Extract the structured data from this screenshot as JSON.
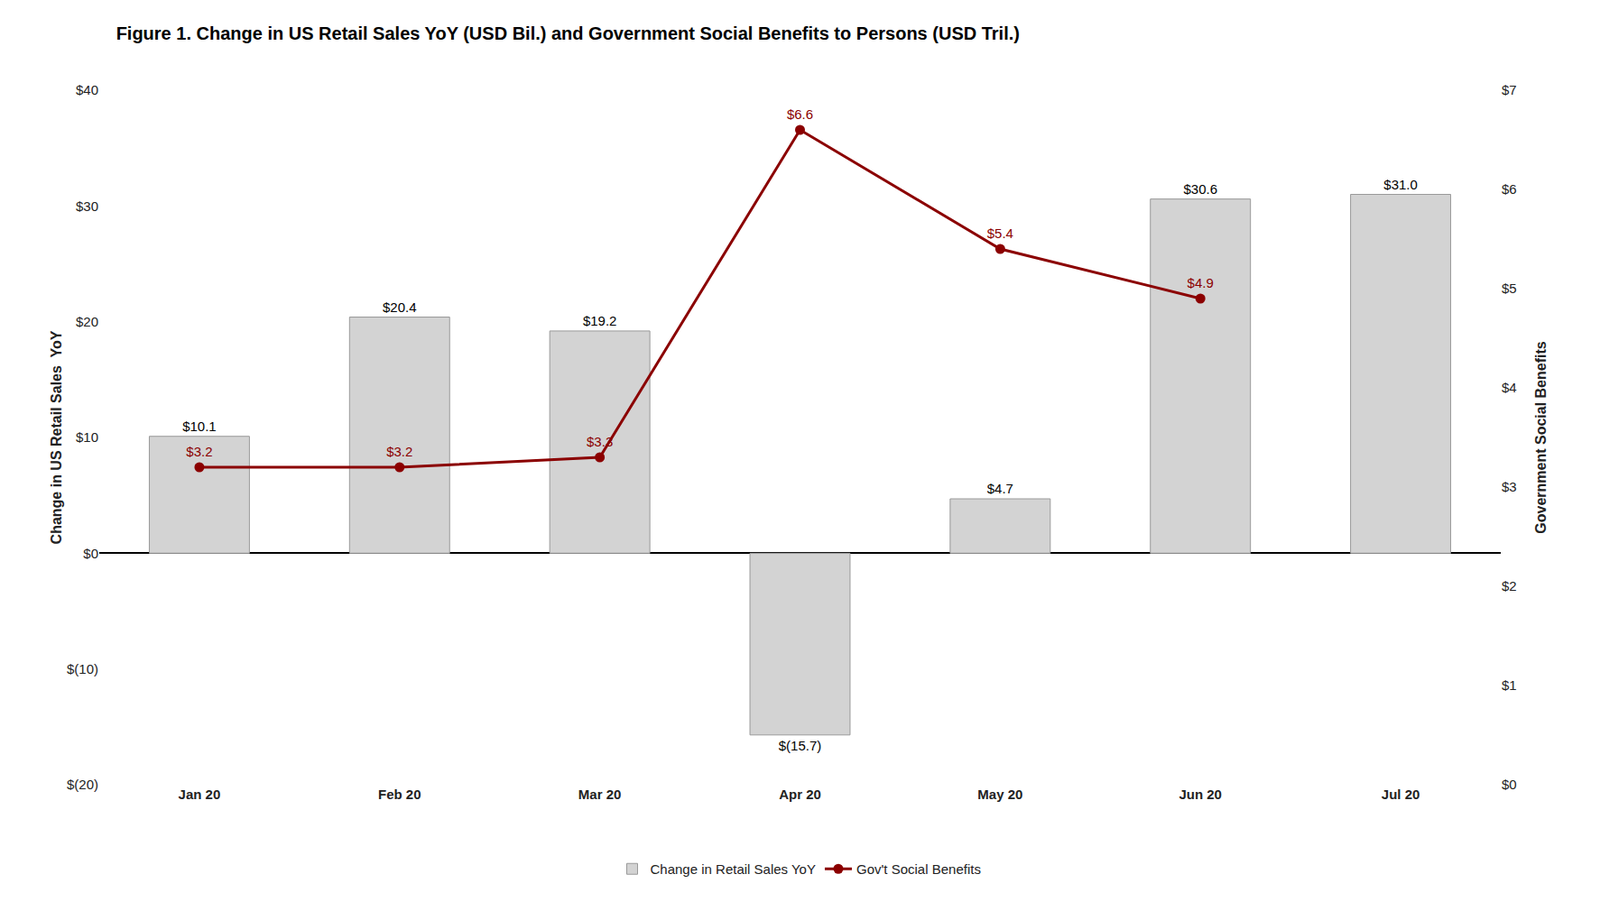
{
  "chart_data": {
    "type": "bar",
    "title": "Figure 1. Change in US Retail Sales YoY (USD Bil.) and Government Social Benefits to Persons (USD Tril.)",
    "categories": [
      "Jan 20",
      "Feb 20",
      "Mar 20",
      "Apr 20",
      "May 20",
      "Jun 20",
      "Jul 20"
    ],
    "series": [
      {
        "name": "Change in Retail Sales YoY",
        "type": "bar",
        "color": "#d3d3d3",
        "values": [
          10.1,
          20.4,
          19.2,
          -15.7,
          4.7,
          30.6,
          31.0
        ],
        "value_labels": [
          "$10.1",
          "$20.4",
          "$19.2",
          "$(15.7)",
          "$4.7",
          "$30.6",
          "$31.0"
        ]
      },
      {
        "name": "Gov't Social Benefits",
        "type": "line",
        "color": "#8b0000",
        "marker": "circle",
        "axis": "y2",
        "values": [
          3.2,
          3.2,
          3.3,
          6.6,
          5.4,
          4.9,
          null
        ],
        "value_labels": [
          "$3.2",
          "$3.2",
          "$3.3",
          "$6.6",
          "$5.4",
          "$4.9",
          null
        ]
      }
    ],
    "ylabel": "Change in US Retail Sales  YoY",
    "y2label": "Government Social Benefits",
    "ylim": [
      -20,
      40
    ],
    "yticks": [
      {
        "value": -20,
        "label": "$(20)"
      },
      {
        "value": -10,
        "label": "$(10)"
      },
      {
        "value": 0,
        "label": "$0"
      },
      {
        "value": 10,
        "label": "$10"
      },
      {
        "value": 20,
        "label": "$20"
      },
      {
        "value": 30,
        "label": "$30"
      },
      {
        "value": 40,
        "label": "$40"
      }
    ],
    "y2lim": [
      0,
      7
    ],
    "y2ticks": [
      {
        "value": 0,
        "label": "$0"
      },
      {
        "value": 1,
        "label": "$1"
      },
      {
        "value": 2,
        "label": "$2"
      },
      {
        "value": 3,
        "label": "$3"
      },
      {
        "value": 4,
        "label": "$4"
      },
      {
        "value": 5,
        "label": "$5"
      },
      {
        "value": 6,
        "label": "$6"
      },
      {
        "value": 7,
        "label": "$7"
      }
    ],
    "grid": false,
    "legend": "bottom",
    "data_labels": true
  }
}
